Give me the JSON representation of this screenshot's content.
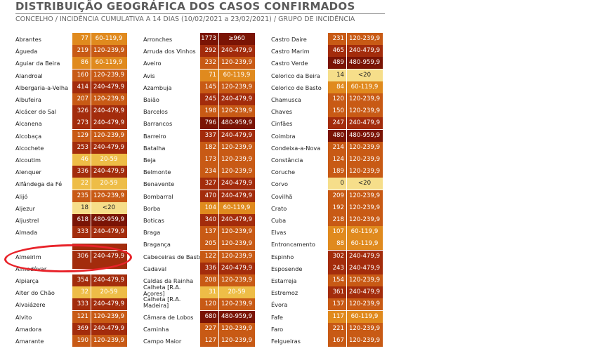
{
  "title": "DISTRIBUIÇÃO GEOGRÁFICA DOS CASOS CONFIRMADOS",
  "subtitle": "CONCELHO / INCIDÊNCIA CUMULATIVA A 14 DIAS (10/02/2021 a 23/02/2021) / GRUPO DE INCIDÊNCIA",
  "colors": {
    "lt20": "#f6de8a",
    "r20_59": "#eebd47",
    "r60_119": "#e08a1e",
    "r120_239": "#c85a15",
    "r240_479": "#a32c0c",
    "r480_959": "#8c1a08",
    "ge960": "#7a1405",
    "annotation": "#e8232a"
  },
  "columns": [
    [
      {
        "name": "Abrantes",
        "value": "77",
        "range": "60-119,9"
      },
      {
        "name": "Águeda",
        "value": "219",
        "range": "120-239,9"
      },
      {
        "name": "Aguiar da Beira",
        "value": "86",
        "range": "60-119,9"
      },
      {
        "name": "Alandroal",
        "value": "160",
        "range": "120-239,9"
      },
      {
        "name": "Albergaria-a-Velha",
        "value": "414",
        "range": "240-479,9"
      },
      {
        "name": "Albufeira",
        "value": "207",
        "range": "120-239,9"
      },
      {
        "name": "Alcácer do Sal",
        "value": "326",
        "range": "240-479,9"
      },
      {
        "name": "Alcanena",
        "value": "273",
        "range": "240-479,9"
      },
      {
        "name": "Alcobaça",
        "value": "129",
        "range": "120-239,9"
      },
      {
        "name": "Alcochete",
        "value": "253",
        "range": "240-479,9"
      },
      {
        "name": "Alcoutim",
        "value": "46",
        "range": "20-59"
      },
      {
        "name": "Alenquer",
        "value": "336",
        "range": "240-479,9"
      },
      {
        "name": "Alfândega da Fé",
        "value": "22",
        "range": "20-59"
      },
      {
        "name": "Alijó",
        "value": "235",
        "range": "120-239,9"
      },
      {
        "name": "Aljezur",
        "value": "18",
        "range": "<20"
      },
      {
        "name": "Aljustrel",
        "value": "618",
        "range": "480-959,9"
      },
      {
        "name": "Almada",
        "value": "333",
        "range": "240-479,9"
      },
      {
        "name": "",
        "value": "",
        "range": ""
      },
      {
        "name": "Almeirim",
        "value": "306",
        "range": "240-479,9"
      },
      {
        "name": "Almodôvar",
        "value": "",
        "range": ""
      },
      {
        "name": "Alpiarça",
        "value": "354",
        "range": "240-479,9"
      },
      {
        "name": "Alter do Chão",
        "value": "32",
        "range": "20-59"
      },
      {
        "name": "Alvaiázere",
        "value": "333",
        "range": "240-479,9"
      },
      {
        "name": "Alvito",
        "value": "121",
        "range": "120-239,9"
      },
      {
        "name": "Amadora",
        "value": "369",
        "range": "240-479,9"
      },
      {
        "name": "Amarante",
        "value": "190",
        "range": "120-239,9"
      }
    ],
    [
      {
        "name": "Arronches",
        "value": "1773",
        "range": "≥960"
      },
      {
        "name": "Arruda dos Vinhos",
        "value": "292",
        "range": "240-479,9"
      },
      {
        "name": "Aveiro",
        "value": "232",
        "range": "120-239,9"
      },
      {
        "name": "Avis",
        "value": "71",
        "range": "60-119,9"
      },
      {
        "name": "Azambuja",
        "value": "145",
        "range": "120-239,9"
      },
      {
        "name": "Baião",
        "value": "245",
        "range": "240-479,9"
      },
      {
        "name": "Barcelos",
        "value": "198",
        "range": "120-239,9"
      },
      {
        "name": "Barrancos",
        "value": "796",
        "range": "480-959,9"
      },
      {
        "name": "Barreiro",
        "value": "337",
        "range": "240-479,9"
      },
      {
        "name": "Batalha",
        "value": "182",
        "range": "120-239,9"
      },
      {
        "name": "Beja",
        "value": "173",
        "range": "120-239,9"
      },
      {
        "name": "Belmonte",
        "value": "234",
        "range": "120-239,9"
      },
      {
        "name": "Benavente",
        "value": "327",
        "range": "240-479,9"
      },
      {
        "name": "Bombarral",
        "value": "470",
        "range": "240-479,9"
      },
      {
        "name": "Borba",
        "value": "104",
        "range": "60-119,9"
      },
      {
        "name": "Boticas",
        "value": "340",
        "range": "240-479,9"
      },
      {
        "name": "Braga",
        "value": "137",
        "range": "120-239,9"
      },
      {
        "name": "Bragança",
        "value": "205",
        "range": "120-239,9"
      },
      {
        "name": "Cabeceiras de Basto",
        "value": "122",
        "range": "120-239,9"
      },
      {
        "name": "Cadaval",
        "value": "336",
        "range": "240-479,9"
      },
      {
        "name": "Caldas da Rainha",
        "value": "208",
        "range": "120-239,9"
      },
      {
        "name": "Calheta [R.A. Açores]",
        "value": "31",
        "range": "20-59"
      },
      {
        "name": "Calheta [R.A. Madeira]",
        "value": "120",
        "range": "120-239,9"
      },
      {
        "name": "Câmara de Lobos",
        "value": "680",
        "range": "480-959,9"
      },
      {
        "name": "Caminha",
        "value": "227",
        "range": "120-239,9"
      },
      {
        "name": "Campo Maior",
        "value": "127",
        "range": "120-239,9"
      }
    ],
    [
      {
        "name": "Castro Daire",
        "value": "231",
        "range": "120-239,9"
      },
      {
        "name": "Castro Marim",
        "value": "465",
        "range": "240-479,9"
      },
      {
        "name": "Castro Verde",
        "value": "489",
        "range": "480-959,9"
      },
      {
        "name": "Celorico da Beira",
        "value": "14",
        "range": "<20"
      },
      {
        "name": "Celorico de Basto",
        "value": "84",
        "range": "60-119,9"
      },
      {
        "name": "Chamusca",
        "value": "120",
        "range": "120-239,9"
      },
      {
        "name": "Chaves",
        "value": "150",
        "range": "120-239,9"
      },
      {
        "name": "Cinfães",
        "value": "247",
        "range": "240-479,9"
      },
      {
        "name": "Coimbra",
        "value": "480",
        "range": "480-959,9"
      },
      {
        "name": "Condeixa-a-Nova",
        "value": "214",
        "range": "120-239,9"
      },
      {
        "name": "Constância",
        "value": "124",
        "range": "120-239,9"
      },
      {
        "name": "Coruche",
        "value": "189",
        "range": "120-239,9"
      },
      {
        "name": "Corvo",
        "value": "0",
        "range": "<20"
      },
      {
        "name": "Covilhã",
        "value": "209",
        "range": "120-239,9"
      },
      {
        "name": "Crato",
        "value": "192",
        "range": "120-239,9"
      },
      {
        "name": "Cuba",
        "value": "218",
        "range": "120-239,9"
      },
      {
        "name": "Elvas",
        "value": "107",
        "range": "60-119,9"
      },
      {
        "name": "Entroncamento",
        "value": "88",
        "range": "60-119,9"
      },
      {
        "name": "Espinho",
        "value": "302",
        "range": "240-479,9"
      },
      {
        "name": "Esposende",
        "value": "243",
        "range": "240-479,9"
      },
      {
        "name": "Estarreja",
        "value": "154",
        "range": "120-239,9"
      },
      {
        "name": "Estremoz",
        "value": "361",
        "range": "240-479,9"
      },
      {
        "name": "Évora",
        "value": "137",
        "range": "120-239,9"
      },
      {
        "name": "Fafe",
        "value": "117",
        "range": "60-119,9"
      },
      {
        "name": "Faro",
        "value": "221",
        "range": "120-239,9"
      },
      {
        "name": "Felgueiras",
        "value": "167",
        "range": "120-239,9"
      }
    ]
  ]
}
